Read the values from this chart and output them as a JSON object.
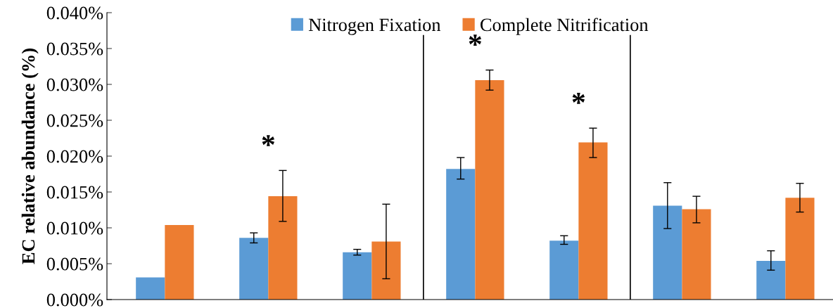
{
  "chart_data": {
    "type": "bar",
    "ylabel": "EC relative abundance (%)",
    "categories": [
      null,
      null,
      null,
      null,
      null,
      null,
      null
    ],
    "series": [
      {
        "name": "Nitrogen Fixation",
        "color": "#5b9bd5",
        "values": [
          0.0031,
          0.0086,
          0.0066,
          0.0182,
          0.0082,
          0.0131,
          0.0054
        ],
        "errors": [
          null,
          [
            0.0079,
            0.0093
          ],
          [
            0.0062,
            0.007
          ],
          [
            0.0168,
            0.0198
          ],
          [
            0.0077,
            0.0089
          ],
          [
            0.0099,
            0.0163
          ],
          [
            0.0041,
            0.0068
          ]
        ]
      },
      {
        "name": "Complete Nitrification",
        "color": "#ed7d31",
        "values": [
          0.0104,
          0.0144,
          0.0081,
          0.0306,
          0.0219,
          0.0126,
          0.0142
        ],
        "errors": [
          null,
          [
            0.0109,
            0.018
          ],
          [
            0.0029,
            0.0133
          ],
          [
            0.0292,
            0.032
          ],
          [
            0.0198,
            0.0239
          ],
          [
            0.0107,
            0.0144
          ],
          [
            0.0122,
            0.0162
          ]
        ],
        "value_labels": [
          null,
          "*",
          null,
          "*",
          "*",
          null,
          null
        ]
      }
    ],
    "ylim": [
      0,
      0.04
    ],
    "yticks": [
      {
        "value": 0,
        "label": "0.000%"
      },
      {
        "value": 0.005,
        "label": "0.005%"
      },
      {
        "value": 0.01,
        "label": "0.010%"
      },
      {
        "value": 0.015,
        "label": "0.015%"
      },
      {
        "value": 0.02,
        "label": "0.020%"
      },
      {
        "value": 0.025,
        "label": "0.025%"
      },
      {
        "value": 0.03,
        "label": "0.030%"
      },
      {
        "value": 0.035,
        "label": "0.035%"
      },
      {
        "value": 0.04,
        "label": "0.040%"
      }
    ],
    "grid": false,
    "legend": "top"
  }
}
